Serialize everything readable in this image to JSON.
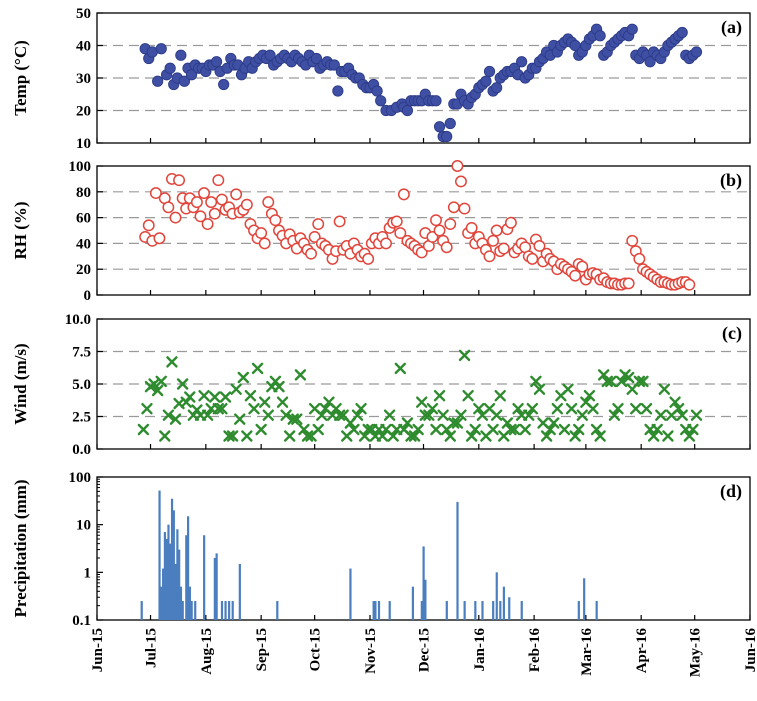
{
  "figure": {
    "x_tick_labels": [
      "Jun-15",
      "Jul-15",
      "Aug-15",
      "Sep-15",
      "Oct-15",
      "Nov-15",
      "Dec-15",
      "Jan-16",
      "Feb-16",
      "Mar-16",
      "Apr-16",
      "May-16",
      "Jun-16"
    ]
  },
  "chart_data": [
    {
      "panel": "(a)",
      "type": "scatter",
      "ylabel": "Temp (°C)",
      "ylim": [
        10,
        50
      ],
      "y_ticks": [
        "50",
        "40",
        "30",
        "20",
        "10"
      ],
      "grid": "horizontal dashed",
      "marker": "filled circle",
      "color": "#3f4fa3",
      "x_unit": "days since 2015-06-01",
      "x": [
        27,
        29,
        31,
        34,
        36,
        39,
        41,
        43,
        45,
        47,
        49,
        51,
        53,
        55,
        57,
        59,
        61,
        63,
        65,
        67,
        69,
        71,
        73,
        75,
        77,
        79,
        81,
        83,
        85,
        87,
        89,
        91,
        93,
        95,
        97,
        99,
        101,
        103,
        105,
        107,
        109,
        111,
        113,
        115,
        117,
        119,
        121,
        123,
        125,
        127,
        129,
        131,
        133,
        135,
        137,
        139,
        141,
        143,
        145,
        147,
        149,
        151,
        153,
        155,
        157,
        159,
        162,
        165,
        168,
        171,
        172,
        174,
        176,
        178,
        180,
        182,
        184,
        186,
        188,
        190,
        192,
        194,
        196,
        198,
        200,
        202,
        204,
        206,
        208,
        210,
        212,
        214,
        216,
        218,
        220,
        222,
        224,
        226,
        228,
        230,
        232,
        234,
        236,
        238,
        240,
        242,
        244,
        246,
        248,
        250,
        252,
        254,
        256,
        258,
        260,
        262,
        264,
        266,
        268,
        270,
        272,
        274,
        276,
        278,
        280,
        282,
        284,
        286,
        288,
        290,
        292,
        294,
        296,
        298,
        300,
        302,
        304,
        306,
        308,
        310,
        312,
        314,
        316,
        318,
        320,
        322,
        324,
        326,
        328,
        330,
        332,
        334,
        336
      ],
      "y": [
        39,
        36,
        38,
        29,
        39,
        31,
        33,
        28,
        30,
        37,
        29,
        33,
        31,
        34,
        33,
        33,
        32,
        34,
        34,
        35,
        32,
        28,
        33,
        36,
        34,
        34,
        31,
        33,
        35,
        33,
        35,
        36,
        37,
        36,
        37,
        34,
        35,
        36,
        37,
        36,
        35,
        37,
        36,
        35,
        34,
        37,
        35,
        36,
        33,
        34,
        35,
        34,
        34,
        26,
        32,
        32,
        33,
        31,
        30,
        30,
        28,
        27,
        27,
        28,
        26,
        23,
        20,
        20,
        21,
        22,
        21,
        20,
        23,
        23,
        23,
        23,
        25,
        23,
        23,
        23,
        15,
        12,
        12,
        16,
        22,
        22,
        25,
        23,
        22,
        24,
        25,
        27,
        28,
        29,
        32,
        26,
        27,
        30,
        31,
        32,
        32,
        33,
        31,
        35,
        30,
        31,
        33,
        33,
        35,
        36,
        38,
        37,
        40,
        38,
        40,
        41,
        42,
        41,
        40,
        37,
        38,
        40,
        42,
        43,
        45,
        43,
        37,
        38,
        40,
        41,
        42,
        43,
        44,
        43,
        45,
        37,
        36,
        38,
        37,
        35,
        38,
        37,
        36,
        38,
        40,
        41,
        42,
        43,
        44,
        37,
        36,
        37,
        38
      ],
      "note": "values read approximately from the plot"
    },
    {
      "panel": "(b)",
      "type": "scatter",
      "ylabel": "RH (%)",
      "ylim": [
        0,
        100
      ],
      "y_ticks": [
        "100",
        "80",
        "60",
        "40",
        "20",
        "0"
      ],
      "grid": "horizontal dashed",
      "marker": "open circle",
      "color": "#e0463c",
      "x_unit": "days since 2015-06-01",
      "x": [
        27,
        29,
        31,
        33,
        35,
        38,
        40,
        42,
        44,
        46,
        48,
        50,
        52,
        54,
        56,
        58,
        60,
        62,
        64,
        66,
        68,
        70,
        72,
        74,
        76,
        78,
        80,
        82,
        84,
        86,
        88,
        90,
        92,
        94,
        96,
        98,
        100,
        102,
        104,
        106,
        108,
        110,
        112,
        114,
        116,
        118,
        120,
        122,
        124,
        126,
        128,
        130,
        132,
        134,
        136,
        138,
        140,
        142,
        144,
        146,
        148,
        150,
        152,
        154,
        156,
        158,
        160,
        162,
        164,
        166,
        168,
        170,
        172,
        174,
        176,
        178,
        180,
        182,
        184,
        186,
        188,
        190,
        192,
        194,
        196,
        198,
        200,
        202,
        204,
        206,
        208,
        210,
        212,
        214,
        216,
        218,
        220,
        222,
        224,
        226,
        228,
        230,
        232,
        234,
        236,
        238,
        240,
        242,
        244,
        246,
        248,
        250,
        252,
        254,
        256,
        258,
        260,
        262,
        264,
        266,
        268,
        270,
        272,
        274,
        276,
        278,
        280,
        282,
        284,
        286,
        288,
        290,
        292,
        294,
        296,
        298,
        300,
        302,
        304,
        306,
        308,
        310,
        312,
        314,
        316,
        318,
        320,
        322,
        324,
        326,
        328,
        330,
        332
      ],
      "y": [
        45,
        54,
        42,
        79,
        44,
        75,
        68,
        90,
        60,
        89,
        75,
        67,
        75,
        68,
        72,
        61,
        79,
        55,
        72,
        63,
        89,
        74,
        66,
        68,
        63,
        78,
        64,
        66,
        70,
        55,
        50,
        44,
        48,
        40,
        72,
        63,
        58,
        50,
        46,
        40,
        47,
        42,
        36,
        44,
        40,
        35,
        32,
        45,
        55,
        40,
        38,
        35,
        28,
        34,
        57,
        35,
        38,
        32,
        40,
        35,
        30,
        32,
        28,
        40,
        44,
        40,
        45,
        40,
        52,
        56,
        57,
        48,
        78,
        42,
        40,
        38,
        35,
        33,
        48,
        38,
        45,
        58,
        50,
        42,
        37,
        55,
        68,
        100,
        88,
        67,
        48,
        52,
        40,
        45,
        40,
        35,
        30,
        42,
        50,
        34,
        36,
        51,
        56,
        33,
        36,
        40,
        37,
        30,
        28,
        43,
        38,
        26,
        32,
        28,
        26,
        20,
        24,
        22,
        20,
        18,
        15,
        24,
        22,
        12,
        16,
        17,
        16,
        12,
        13,
        10,
        9,
        9,
        8,
        8,
        9,
        9,
        42,
        34,
        28,
        20,
        18,
        16,
        14,
        12,
        10,
        10,
        9,
        8,
        8,
        9,
        10,
        10,
        8
      ],
      "note": "values read approximately from the plot"
    },
    {
      "panel": "(c)",
      "type": "scatter",
      "ylabel": "Wind (m/s)",
      "ylim": [
        0,
        10
      ],
      "y_ticks": [
        "10.0",
        "7.5",
        "5.0",
        "2.5",
        "0.0"
      ],
      "grid": "horizontal dashed",
      "marker": "x",
      "color": "#2e8b2e",
      "x_unit": "days since 2015-06-01",
      "x": [
        26,
        28,
        30,
        32,
        34,
        36,
        38,
        40,
        42,
        44,
        46,
        48,
        50,
        52,
        54,
        56,
        58,
        60,
        62,
        64,
        66,
        68,
        70,
        72,
        74,
        76,
        78,
        80,
        82,
        84,
        86,
        88,
        90,
        92,
        94,
        96,
        98,
        100,
        102,
        104,
        106,
        108,
        110,
        112,
        114,
        116,
        118,
        120,
        122,
        124,
        126,
        128,
        130,
        132,
        134,
        136,
        138,
        140,
        142,
        144,
        146,
        148,
        150,
        152,
        154,
        156,
        158,
        160,
        162,
        164,
        166,
        168,
        170,
        172,
        174,
        176,
        178,
        180,
        182,
        184,
        186,
        188,
        190,
        192,
        194,
        196,
        198,
        200,
        202,
        204,
        206,
        208,
        210,
        212,
        214,
        216,
        218,
        220,
        222,
        224,
        226,
        228,
        230,
        232,
        234,
        236,
        238,
        240,
        242,
        244,
        246,
        248,
        250,
        252,
        254,
        256,
        258,
        260,
        262,
        264,
        266,
        268,
        270,
        272,
        274,
        276,
        278,
        280,
        282,
        284,
        286,
        288,
        290,
        292,
        294,
        296,
        298,
        300,
        302,
        304,
        306,
        308,
        310,
        312,
        314,
        316,
        318,
        320,
        322,
        324,
        326,
        328,
        330,
        332,
        334,
        336
      ],
      "y": [
        1.5,
        3.1,
        4.8,
        5,
        4.5,
        5.2,
        1,
        2.6,
        6.7,
        2.3,
        3.5,
        5,
        3.6,
        4,
        2.6,
        3,
        2.6,
        4.1,
        2.6,
        3.1,
        4,
        3.1,
        3.1,
        4,
        1,
        1,
        4.6,
        2.3,
        5.5,
        1,
        4.1,
        3.1,
        6.2,
        1.5,
        3.6,
        2.6,
        4.8,
        5.2,
        4.8,
        3.6,
        2.6,
        1,
        2.3,
        2.3,
        5.7,
        1.5,
        1,
        1,
        3.1,
        1.5,
        2.6,
        3.1,
        3.6,
        2.6,
        3.1,
        2.6,
        2.6,
        1,
        2,
        1.5,
        2.6,
        3.1,
        1,
        1.5,
        1.5,
        1,
        1.5,
        1,
        1.5,
        2.6,
        1,
        1.5,
        6.2,
        1.5,
        2,
        1,
        1,
        1.5,
        3.6,
        2.6,
        2.6,
        3.1,
        1.5,
        4.1,
        2.6,
        1.5,
        1,
        2,
        2,
        2.6,
        7.2,
        4.1,
        1,
        1.5,
        3.1,
        2.6,
        1,
        3.1,
        1.5,
        2.6,
        4.1,
        1,
        2,
        1.5,
        1.5,
        3.1,
        2.6,
        1.5,
        2.6,
        3.1,
        5.2,
        4.6,
        2,
        1,
        1.5,
        2,
        3.1,
        4.1,
        1.5,
        4.6,
        3.1,
        1,
        1.5,
        2.6,
        3.6,
        4.1,
        3.1,
        1.5,
        1,
        5.7,
        5.2,
        5.2,
        2.6,
        3.1,
        5.2,
        5.7,
        5.5,
        4.6,
        3.1,
        5.2,
        5.2,
        3.1,
        1.5,
        1,
        1.5,
        2.6,
        4.6,
        1,
        2.6,
        3.6,
        3.1,
        2.6,
        1.5,
        1,
        1.5,
        2.6
      ],
      "note": "values read approximately from the plot"
    },
    {
      "panel": "(d)",
      "type": "bar",
      "ylabel": "Precipitation (mm)",
      "yscale": "log",
      "ylim": [
        0.1,
        100
      ],
      "y_ticks": [
        "100",
        "10",
        "1",
        "0.1"
      ],
      "color": "#4a7ebf",
      "x_unit": "days since 2015-06-01",
      "x": [
        25,
        35,
        36,
        37,
        38,
        39,
        40,
        41,
        42,
        43,
        44,
        45,
        46,
        47,
        48,
        50,
        51,
        52,
        53,
        55,
        60,
        66,
        67,
        70,
        72,
        74,
        76,
        80,
        101,
        142,
        155,
        156,
        158,
        164,
        177,
        182,
        183,
        184,
        196,
        202,
        206,
        212,
        216,
        222,
        224,
        226,
        228,
        231,
        238,
        270,
        273,
        280
      ],
      "values": [
        0.25,
        52,
        0.5,
        1.2,
        7,
        5,
        10,
        4,
        35,
        20,
        1.5,
        8,
        3,
        0.5,
        0.25,
        6,
        15,
        0.5,
        0.25,
        0.25,
        6,
        2,
        2.5,
        0.25,
        0.25,
        0.25,
        0.25,
        1.5,
        0.25,
        1.2,
        0.25,
        0.25,
        0.25,
        0.25,
        0.5,
        0.25,
        3.5,
        0.7,
        0.25,
        30,
        0.25,
        0.25,
        0.25,
        0.25,
        1,
        0.25,
        0.5,
        0.3,
        0.25,
        0.25,
        0.75,
        0.25
      ],
      "note": "values read approximately from the plot"
    }
  ]
}
